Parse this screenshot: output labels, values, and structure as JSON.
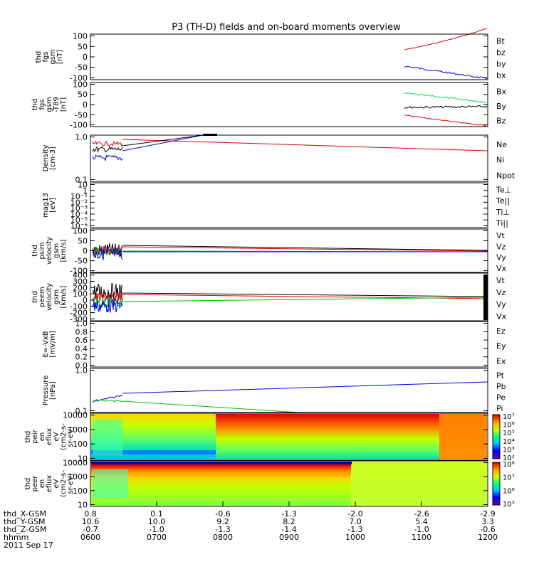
{
  "title": "P3 (TH-D) fields and on-board moments overview",
  "panels": [
    {
      "id": "fgs_gsm",
      "ylabel": [
        "thd",
        "fgs",
        "gsm",
        "[nT]"
      ],
      "yticks": [
        "100",
        "50",
        "0",
        "-50",
        "-100"
      ],
      "legend": [
        {
          "label": "Bt",
          "color": "#000000"
        },
        {
          "label": "bz",
          "color": "#e00000"
        },
        {
          "label": "by",
          "color": "#00c000"
        },
        {
          "label": "bx",
          "color": "#0000e0"
        }
      ]
    },
    {
      "id": "fgs_gsm_t89",
      "ylabel": [
        "thd",
        "fgs",
        "gsm",
        "-T89",
        "[nT]"
      ],
      "yticks": [
        "100",
        "50",
        "0",
        "-50",
        "-100"
      ],
      "legend": [
        {
          "label": "Bx",
          "color": "#000000"
        },
        {
          "label": "By",
          "color": "#00e060"
        },
        {
          "label": "Bz",
          "color": "#e00000"
        }
      ]
    },
    {
      "id": "density",
      "ylabel": [
        "Density",
        "[cm-3]"
      ],
      "yticks": [
        "1.0",
        "0.1"
      ],
      "legend": [
        {
          "label": "Ne",
          "color": "#e00000"
        },
        {
          "label": "Ni",
          "color": "#000000"
        },
        {
          "label": "Npot",
          "color": "#0000e0"
        }
      ]
    },
    {
      "id": "temperature",
      "ylabel": [
        "mag13",
        "[eV]"
      ],
      "yticks": [
        "10",
        "1",
        "10⁻¹",
        "10⁻²",
        "10⁻³",
        "10⁻⁴",
        "10⁻⁵",
        "10⁻⁶"
      ],
      "legend": [
        {
          "label": "Te⊥",
          "color": "#e00000"
        },
        {
          "label": "Te||",
          "color": "#000000"
        },
        {
          "label": "Ti⊥",
          "color": "#0000e0"
        },
        {
          "label": "Ti||",
          "color": "#00c000"
        }
      ]
    },
    {
      "id": "psim_velocity",
      "ylabel": [
        "thd",
        "psim",
        "velocity",
        "gsm",
        "[km/s]"
      ],
      "yticks": [
        "100",
        "50",
        "0",
        "-50",
        "-100"
      ],
      "legend": [
        {
          "label": "Vt",
          "color": "#000000"
        },
        {
          "label": "Vz",
          "color": "#e00000"
        },
        {
          "label": "Vy",
          "color": "#00c000"
        },
        {
          "label": "Vx",
          "color": "#0000e0"
        }
      ]
    },
    {
      "id": "peem_velocity",
      "ylabel": [
        "thd",
        "peem",
        "velocity",
        "gsm",
        "[km/s]"
      ],
      "yticks": [
        "400",
        "300",
        "200",
        "100",
        "0",
        "-100",
        "-200",
        "-300"
      ],
      "legend": [
        {
          "label": "Vt",
          "color": "#000000"
        },
        {
          "label": "Vz",
          "color": "#e00000"
        },
        {
          "label": "Vy",
          "color": "#00c000"
        },
        {
          "label": "Vx",
          "color": "#0000e0"
        }
      ]
    },
    {
      "id": "e_field",
      "ylabel": [
        "E=-VxB",
        "[mV/m]"
      ],
      "yticks": [
        "1.0",
        "0.8",
        "0.6",
        "0.4",
        "0.2",
        "0.0"
      ],
      "legend": [
        {
          "label": "Ez",
          "color": "#e00000"
        },
        {
          "label": "Ey",
          "color": "#00c000"
        },
        {
          "label": "Ex",
          "color": "#0000e0"
        }
      ]
    },
    {
      "id": "pressure",
      "ylabel": [
        "Pressure",
        "[nPa]"
      ],
      "yticks": [
        "1.0",
        "0.1"
      ],
      "legend": [
        {
          "label": "Pt",
          "color": "#000000"
        },
        {
          "label": "Pb",
          "color": "#e00000"
        },
        {
          "label": "Pe",
          "color": "#00c000"
        },
        {
          "label": "Pi",
          "color": "#0000e0"
        }
      ]
    },
    {
      "id": "peir_spec",
      "ylabel": [
        "thd",
        "peir",
        "en",
        "eflux",
        "eV",
        "(cm2-s-",
        "sr-eV)"
      ],
      "yticks": [
        "10000",
        "1000",
        "100",
        "10"
      ],
      "colorbar": [
        "10⁷",
        "10⁶",
        "10⁵",
        "10⁴",
        "10³",
        "10²"
      ]
    },
    {
      "id": "peer_spec",
      "ylabel": [
        "thd",
        "peer",
        "en",
        "eflux",
        "eV",
        "(cm2-s-",
        "sr-eV)"
      ],
      "yticks": [
        "10000",
        "1000",
        "100",
        "10"
      ],
      "colorbar": [
        "10⁸",
        "10⁷",
        "10⁶",
        "10⁵"
      ]
    }
  ],
  "xaxis": {
    "row_labels": [
      "thd_X-GSM",
      "thd_Y-GSM",
      "thd_Z-GSM",
      "hhmm",
      "2011 Sep 17"
    ],
    "ticks": [
      {
        "x": "0.8",
        "y": "10.6",
        "z": "-0.7",
        "t": "0600"
      },
      {
        "x": "0.1",
        "y": "10.0",
        "z": "-1.0",
        "t": "0700"
      },
      {
        "x": "-0.6",
        "y": "9.2",
        "z": "-1.3",
        "t": "0800"
      },
      {
        "x": "-1.3",
        "y": "8.2",
        "z": "-1.4",
        "t": "0900"
      },
      {
        "x": "-2.0",
        "y": "7.0",
        "z": "-1.3",
        "t": "1000"
      },
      {
        "x": "-2.6",
        "y": "5.4",
        "z": "-1.0",
        "t": "1100"
      },
      {
        "x": "-2.9",
        "y": "3.3",
        "z": "-0.6",
        "t": "1200"
      }
    ]
  },
  "chart_data": {
    "type": "line",
    "title": "P3 (TH-D) fields and on-board moments overview",
    "x_range": [
      "0600",
      "1200"
    ],
    "series_approx": [
      {
        "panel": "fgs_gsm",
        "name": "bz",
        "points": [
          [
            1042,
            30
          ],
          [
            1100,
            55
          ],
          [
            1200,
            110
          ]
        ]
      },
      {
        "panel": "fgs_gsm",
        "name": "bx",
        "points": [
          [
            1042,
            -40
          ],
          [
            1100,
            -70
          ],
          [
            1200,
            -100
          ]
        ]
      },
      {
        "panel": "fgs_gsm_t89",
        "name": "By",
        "points": [
          [
            1042,
            45
          ],
          [
            1100,
            35
          ],
          [
            1200,
            -5
          ]
        ]
      },
      {
        "panel": "fgs_gsm_t89",
        "name": "Bx",
        "points": [
          [
            1042,
            -15
          ],
          [
            1100,
            -15
          ],
          [
            1200,
            -5
          ]
        ]
      },
      {
        "panel": "fgs_gsm_t89",
        "name": "Bz",
        "points": [
          [
            1042,
            -55
          ],
          [
            1100,
            -75
          ],
          [
            1200,
            -95
          ]
        ]
      },
      {
        "panel": "density",
        "name": "Ne",
        "points": [
          [
            630,
            0.9
          ],
          [
            900,
            0.7
          ],
          [
            1200,
            0.5
          ]
        ]
      },
      {
        "panel": "psim_velocity",
        "name": "Vt",
        "points": [
          [
            630,
            20
          ],
          [
            900,
            14
          ],
          [
            1200,
            5
          ]
        ]
      },
      {
        "panel": "peem_velocity",
        "name": "Vz",
        "points": [
          [
            630,
            100
          ],
          [
            900,
            90
          ],
          [
            1200,
            70
          ]
        ]
      },
      {
        "panel": "pressure",
        "name": "Pi",
        "points": [
          [
            630,
            0.3
          ],
          [
            900,
            0.4
          ],
          [
            1200,
            0.6
          ]
        ]
      },
      {
        "panel": "pressure",
        "name": "Pe",
        "points": [
          [
            630,
            0.2
          ],
          [
            800,
            0.15
          ],
          [
            900,
            0.1
          ]
        ]
      }
    ]
  }
}
